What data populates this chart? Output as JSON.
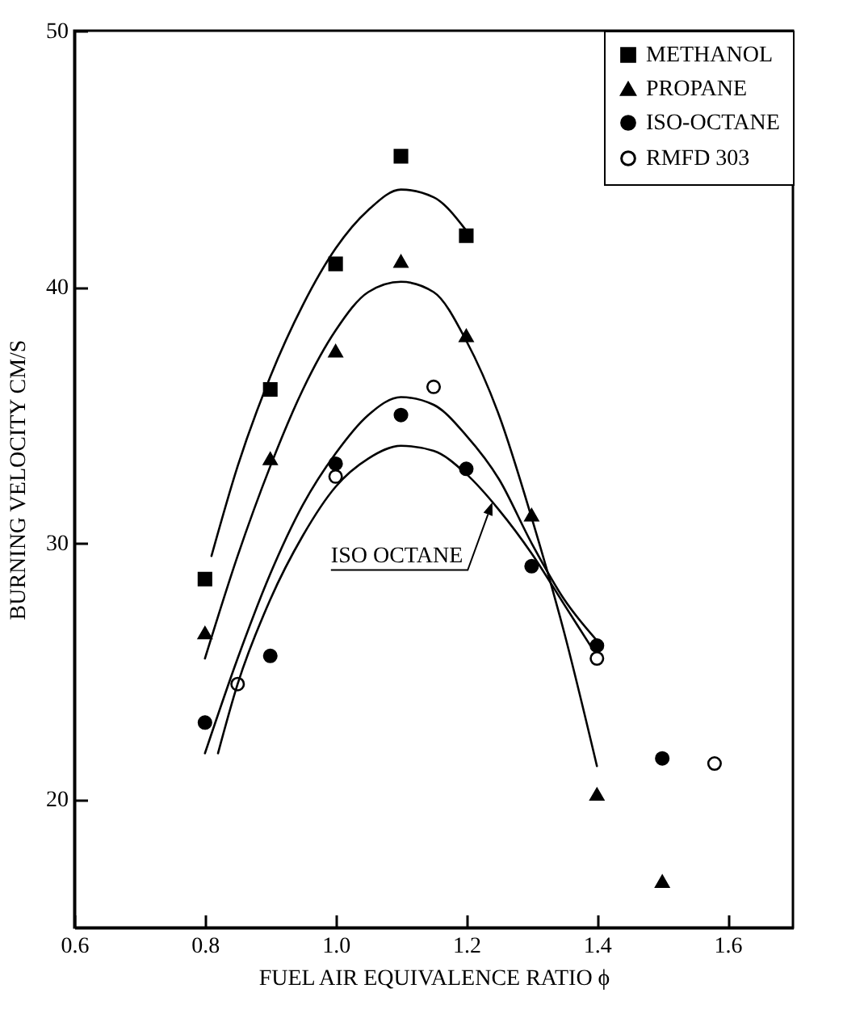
{
  "chart_data": {
    "type": "scatter",
    "xlabel": "FUEL AIR EQUIVALENCE RATIO  ϕ",
    "ylabel": "BURNING VELOCITY  CM/S",
    "xlim": [
      0.6,
      1.7
    ],
    "xticks": [
      0.6,
      0.8,
      {
        "value": 1,
        "label": "1.0"
      },
      1.2,
      1.4,
      1.6
    ],
    "ylim": [
      15,
      50
    ],
    "yticks": [
      20,
      30,
      40,
      50
    ],
    "grid": false,
    "legend": "top right",
    "annotations": [
      {
        "text": "ISO OCTANE",
        "x": 1.24,
        "y": 31.6
      }
    ],
    "series": [
      {
        "name": "METHANOL",
        "color": "#000000",
        "marker": "square",
        "x": [
          0.8,
          0.9,
          1.0,
          1.1,
          1.2
        ],
        "values": [
          28.6,
          36.0,
          40.9,
          45.1,
          42.0
        ]
      },
      {
        "name": "PROPANE",
        "color": "#000000",
        "marker": "triangle",
        "x": [
          0.8,
          0.9,
          1.0,
          1.1,
          1.2,
          1.3,
          1.4,
          1.5
        ],
        "values": [
          26.5,
          33.3,
          37.5,
          41.0,
          38.1,
          31.1,
          20.2,
          16.8
        ]
      },
      {
        "name": "ISO-OCTANE",
        "color": "#000000",
        "marker": "circle",
        "x": [
          0.8,
          0.9,
          1.0,
          1.1,
          1.2,
          1.3,
          1.4,
          1.5
        ],
        "values": [
          23.0,
          25.6,
          33.1,
          35.0,
          32.9,
          29.1,
          26.0,
          21.6
        ]
      },
      {
        "name": "RMFD 303",
        "color": "#ffffff",
        "marker": "circle",
        "x": [
          0.85,
          1.0,
          1.15,
          1.4,
          1.58
        ],
        "values": [
          24.5,
          32.6,
          36.1,
          25.5,
          21.4
        ]
      },
      {
        "type": "line",
        "color": "#000000",
        "marker": "none",
        "x": [
          0.81,
          0.85,
          0.9,
          0.95,
          1.0,
          1.05,
          1.1,
          1.15,
          1.2
        ],
        "values": [
          29.5,
          33.0,
          36.5,
          39.3,
          41.5,
          43.0,
          43.8,
          43.5,
          42.2
        ]
      },
      {
        "type": "line",
        "color": "#000000",
        "marker": "none",
        "x": [
          0.8,
          0.85,
          0.9,
          0.95,
          1.0,
          1.05,
          1.1,
          1.15,
          1.2,
          1.25,
          1.3,
          1.35,
          1.4
        ],
        "values": [
          25.5,
          29.5,
          33.0,
          36.0,
          38.3,
          39.8,
          40.2,
          39.8,
          37.9,
          35.0,
          31.0,
          26.5,
          21.3
        ]
      },
      {
        "type": "line",
        "color": "#000000",
        "marker": "none",
        "x": [
          0.8,
          0.85,
          0.9,
          0.95,
          1.0,
          1.05,
          1.1,
          1.15,
          1.2,
          1.25,
          1.3,
          1.35,
          1.4
        ],
        "values": [
          21.8,
          25.5,
          28.8,
          31.5,
          33.5,
          35.0,
          35.7,
          35.4,
          34.2,
          32.5,
          30.0,
          27.8,
          26.2
        ]
      },
      {
        "type": "line",
        "color": "#000000",
        "marker": "none",
        "x": [
          0.82,
          0.85,
          0.9,
          0.95,
          1.0,
          1.05,
          1.1,
          1.15,
          1.2,
          1.25,
          1.3,
          1.35,
          1.39
        ],
        "values": [
          21.8,
          24.5,
          27.8,
          30.3,
          32.2,
          33.3,
          33.8,
          33.6,
          32.7,
          31.3,
          29.6,
          27.6,
          26.0
        ]
      }
    ]
  }
}
